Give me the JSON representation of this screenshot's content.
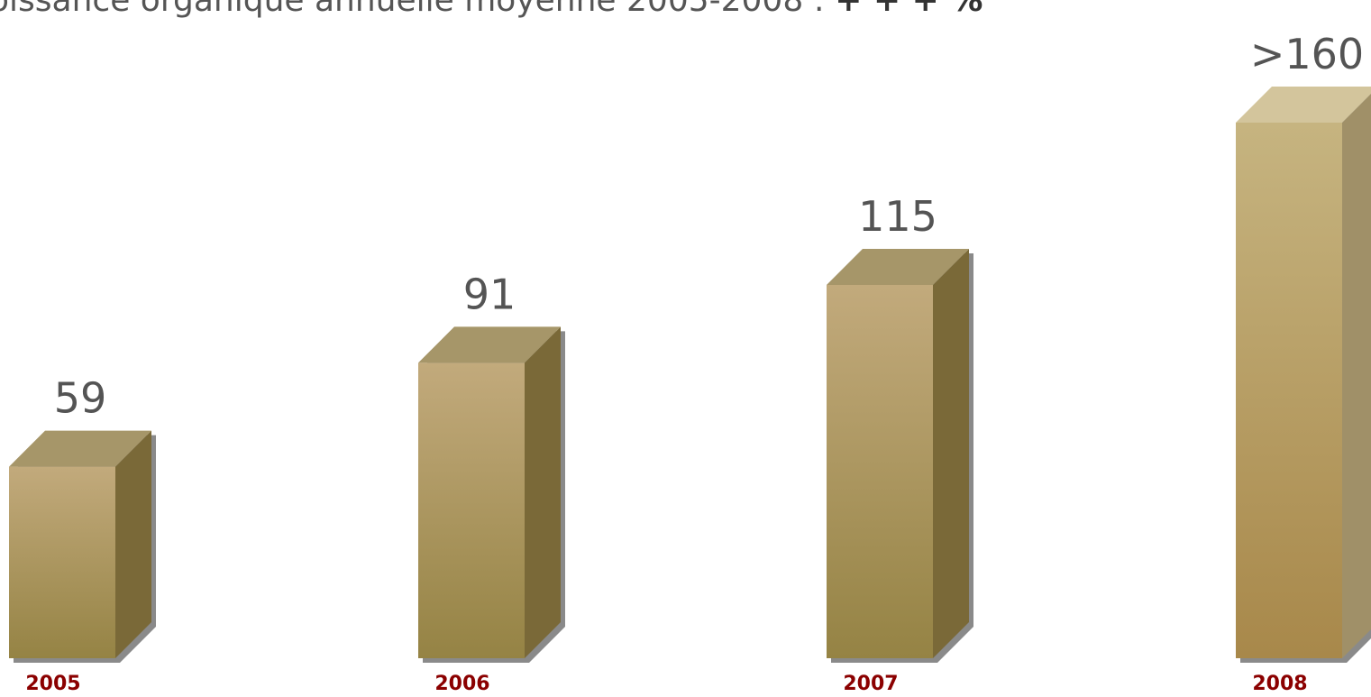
{
  "subtitle": {
    "text": "oissance organique annuelle moyenne 2005-2008 : ",
    "emphasis": "+ + + %"
  },
  "colors": {
    "front_top": "#c2aa7c",
    "front_bottom": "#958344",
    "side": "#7a6938",
    "top": "#a69669",
    "front_top_last": "#c6b480",
    "front_bottom_last": "#a8884a",
    "side_last": "#a09068",
    "top_last": "#d3c59c",
    "shadow": "#8a8a8a",
    "year": "#8b0000",
    "value": "#545454"
  },
  "chart_data": {
    "type": "bar",
    "categories": [
      "2005",
      "2006",
      "2007",
      "2008"
    ],
    "values": [
      59,
      91,
      115,
      165
    ],
    "value_labels": [
      "59",
      "91",
      "115",
      ">160"
    ],
    "title": "",
    "xlabel": "",
    "ylabel": "",
    "grid": false,
    "legend": "none"
  }
}
